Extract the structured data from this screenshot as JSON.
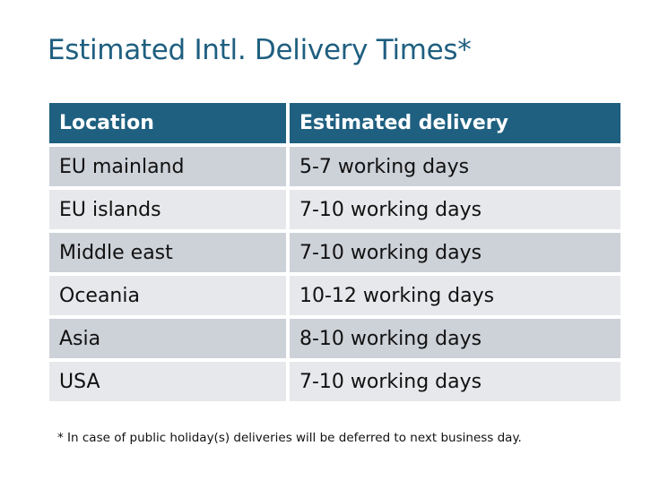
{
  "title": "Estimated Intl. Delivery Times*",
  "table": {
    "headers": [
      "Location",
      "Estimated delivery"
    ],
    "rows": [
      [
        "EU mainland",
        "5-7 working days"
      ],
      [
        "EU islands",
        "7-10 working days"
      ],
      [
        "Middle east",
        "7-10 working days"
      ],
      [
        "Oceania",
        "10-12 working days"
      ],
      [
        "Asia",
        "8-10 working days"
      ],
      [
        "USA",
        "7-10 working days"
      ]
    ]
  },
  "footnote": "* In case of public holiday(s) deliveries will be deferred to next business day.",
  "colors": {
    "header": "#1f6080",
    "title": "#1f5f80",
    "row_odd": "#cdd1d8",
    "row_even": "#e7e8eb"
  }
}
